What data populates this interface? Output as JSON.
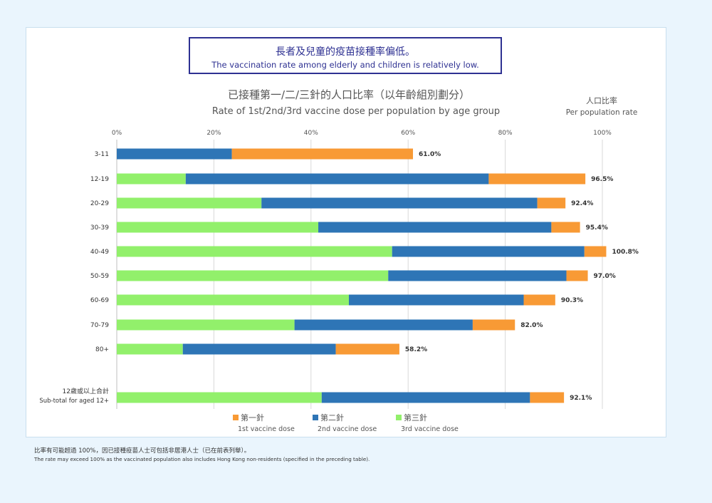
{
  "callout": {
    "zh": "長者及兒童的疫苗接種率偏低。",
    "en": "The vaccination rate among elderly and children is relatively low."
  },
  "chart_data": {
    "type": "bar",
    "orientation": "horizontal",
    "stacked": true,
    "title_zh": "已接種第一/二/三針的人口比率（以年齡組別劃分）",
    "title_en": "Rate of 1st/2nd/3rd vaccine dose per population by age group",
    "unit_zh": "人口比率",
    "unit_en": "Per population rate",
    "xlim": [
      0,
      100
    ],
    "x_ticks": [
      "0%",
      "20%",
      "40%",
      "60%",
      "80%",
      "100%"
    ],
    "grid": true,
    "legend_position": "bottom",
    "categories": [
      "3-11",
      "12-19",
      "20-29",
      "30-39",
      "40-49",
      "50-59",
      "60-69",
      "70-79",
      "80+",
      "",
      "12歲或以上合計"
    ],
    "category_sublabels": [
      "",
      "",
      "",
      "",
      "",
      "",
      "",
      "",
      "",
      "",
      "Sub-total for aged 12+"
    ],
    "series": [
      {
        "name_zh": "第三針",
        "name_en": "3rd vaccine dose",
        "color": "#92f06b",
        "values": [
          0,
          14.2,
          29.8,
          41.5,
          56.7,
          55.9,
          47.8,
          36.6,
          13.6,
          null,
          42.2
        ]
      },
      {
        "name_zh": "第二針",
        "name_en": "2nd vaccine dose",
        "color": "#2e75b6",
        "values": [
          23.7,
          62.4,
          56.8,
          48.0,
          39.6,
          36.7,
          36.0,
          36.7,
          31.5,
          null,
          42.9
        ]
      },
      {
        "name_zh": "第一針",
        "name_en": "1st vaccine dose",
        "color": "#f89a35",
        "values": [
          37.3,
          19.9,
          5.8,
          5.9,
          4.5,
          4.4,
          6.5,
          8.7,
          13.1,
          null,
          7.0
        ]
      }
    ],
    "totals": [
      61.0,
      96.5,
      92.4,
      95.4,
      100.8,
      97.0,
      90.3,
      82.0,
      58.2,
      null,
      92.1
    ],
    "total_labels": [
      "61.0%",
      "96.5%",
      "92.4%",
      "95.4%",
      "100.8%",
      "97.0%",
      "90.3%",
      "82.0%",
      "58.2%",
      "",
      "92.1%"
    ],
    "legend_order": [
      2,
      1,
      0
    ]
  },
  "footnote": {
    "zh": "比率有可能超過 100%，因已接種疫苗人士可包括非居港人士（已在前表列舉）。",
    "en": "The rate may exceed 100% as the vaccinated population also includes Hong Kong non-residents (specified in the preceding table)."
  }
}
